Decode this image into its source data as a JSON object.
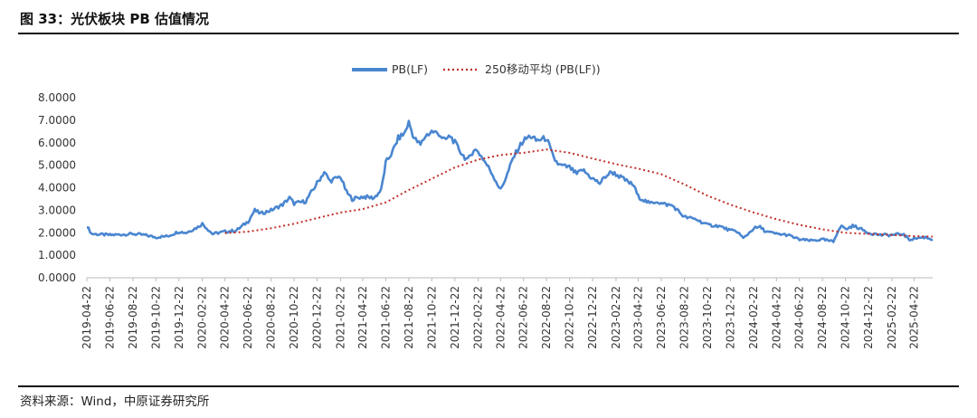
{
  "header": {
    "title": "图 33：光伏板块 PB 估值情况"
  },
  "footer": {
    "source": "资料来源：Wind，中原证券研究所"
  },
  "colors": {
    "pb": "#4A86D0",
    "ma": "#C0302A",
    "axis": "#BBBBBB"
  },
  "chart_data": {
    "type": "line",
    "title": "",
    "xlabel": "",
    "ylabel": "",
    "ylim": [
      0,
      8
    ],
    "y_ticks": [
      "8.0000",
      "7.0000",
      "6.0000",
      "5.0000",
      "4.0000",
      "3.0000",
      "2.0000",
      "1.0000",
      "0.0000"
    ],
    "x_range": [
      "2019-04-22",
      "2025-06-10"
    ],
    "x_ticks": [
      "2019-04-22",
      "2019-06-22",
      "2019-08-22",
      "2019-10-22",
      "2019-12-22",
      "2020-02-22",
      "2020-04-22",
      "2020-06-22",
      "2020-08-22",
      "2020-10-22",
      "2020-12-22",
      "2021-02-22",
      "2021-04-22",
      "2021-06-22",
      "2021-08-22",
      "2021-10-22",
      "2021-12-22",
      "2022-02-22",
      "2022-04-22",
      "2022-06-22",
      "2022-08-22",
      "2022-10-22",
      "2022-12-22",
      "2023-02-22",
      "2023-04-22",
      "2023-06-22",
      "2023-08-22",
      "2023-10-22",
      "2023-12-22",
      "2024-02-22",
      "2024-04-22",
      "2024-06-22",
      "2024-08-22",
      "2024-10-22",
      "2024-12-22",
      "2025-02-22",
      "2025-04-22"
    ],
    "legend_position": "top-center",
    "series": [
      {
        "name": "PB(LF)",
        "style": "solid",
        "points": [
          [
            "2019-04-22",
            2.3
          ],
          [
            "2019-05-05",
            1.95
          ],
          [
            "2019-06-22",
            1.9
          ],
          [
            "2019-07-22",
            1.92
          ],
          [
            "2019-08-22",
            1.95
          ],
          [
            "2019-09-22",
            1.9
          ],
          [
            "2019-10-22",
            1.8
          ],
          [
            "2019-11-22",
            1.85
          ],
          [
            "2019-12-22",
            2.05
          ],
          [
            "2020-01-10",
            2.0
          ],
          [
            "2020-02-10",
            2.25
          ],
          [
            "2020-02-22",
            2.4
          ],
          [
            "2020-03-20",
            1.95
          ],
          [
            "2020-04-22",
            2.05
          ],
          [
            "2020-05-22",
            2.1
          ],
          [
            "2020-06-22",
            2.5
          ],
          [
            "2020-07-10",
            3.0
          ],
          [
            "2020-07-25",
            2.85
          ],
          [
            "2020-08-22",
            3.0
          ],
          [
            "2020-09-22",
            3.25
          ],
          [
            "2020-10-10",
            3.55
          ],
          [
            "2020-10-22",
            3.3
          ],
          [
            "2020-11-22",
            3.4
          ],
          [
            "2020-12-22",
            4.2
          ],
          [
            "2021-01-10",
            4.7
          ],
          [
            "2021-01-25",
            4.3
          ],
          [
            "2021-02-22",
            4.5
          ],
          [
            "2021-03-10",
            3.8
          ],
          [
            "2021-03-25",
            3.5
          ],
          [
            "2021-04-22",
            3.6
          ],
          [
            "2021-05-22",
            3.55
          ],
          [
            "2021-06-10",
            3.9
          ],
          [
            "2021-06-22",
            5.1
          ],
          [
            "2021-07-10",
            5.6
          ],
          [
            "2021-07-25",
            6.2
          ],
          [
            "2021-08-10",
            6.4
          ],
          [
            "2021-08-22",
            6.9
          ],
          [
            "2021-09-05",
            6.2
          ],
          [
            "2021-09-22",
            5.9
          ],
          [
            "2021-10-05",
            6.3
          ],
          [
            "2021-10-22",
            6.5
          ],
          [
            "2021-11-10",
            6.4
          ],
          [
            "2021-11-25",
            6.1
          ],
          [
            "2021-12-10",
            6.3
          ],
          [
            "2021-12-22",
            6.0
          ],
          [
            "2022-01-10",
            5.5
          ],
          [
            "2022-01-25",
            5.2
          ],
          [
            "2022-02-10",
            5.7
          ],
          [
            "2022-02-22",
            5.6
          ],
          [
            "2022-03-10",
            5.2
          ],
          [
            "2022-03-25",
            4.8
          ],
          [
            "2022-04-10",
            4.3
          ],
          [
            "2022-04-22",
            3.9
          ],
          [
            "2022-05-10",
            4.6
          ],
          [
            "2022-05-25",
            5.3
          ],
          [
            "2022-06-10",
            5.8
          ],
          [
            "2022-06-22",
            6.1
          ],
          [
            "2022-07-10",
            6.3
          ],
          [
            "2022-07-25",
            6.1
          ],
          [
            "2022-08-22",
            6.2
          ],
          [
            "2022-09-10",
            5.3
          ],
          [
            "2022-09-25",
            5.0
          ],
          [
            "2022-10-22",
            4.9
          ],
          [
            "2022-11-10",
            4.6
          ],
          [
            "2022-11-25",
            4.8
          ],
          [
            "2022-12-22",
            4.4
          ],
          [
            "2023-01-10",
            4.2
          ],
          [
            "2023-01-25",
            4.5
          ],
          [
            "2023-02-10",
            4.7
          ],
          [
            "2023-02-22",
            4.6
          ],
          [
            "2023-03-22",
            4.3
          ],
          [
            "2023-04-10",
            4.1
          ],
          [
            "2023-04-22",
            3.6
          ],
          [
            "2023-05-22",
            3.3
          ],
          [
            "2023-06-10",
            3.4
          ],
          [
            "2023-06-22",
            3.3
          ],
          [
            "2023-07-22",
            3.2
          ],
          [
            "2023-08-10",
            2.9
          ],
          [
            "2023-08-22",
            2.7
          ],
          [
            "2023-09-22",
            2.6
          ],
          [
            "2023-10-10",
            2.45
          ],
          [
            "2023-10-22",
            2.35
          ],
          [
            "2023-11-22",
            2.3
          ],
          [
            "2023-12-22",
            2.1
          ],
          [
            "2024-01-10",
            2.05
          ],
          [
            "2024-01-25",
            1.75
          ],
          [
            "2024-02-10",
            2.0
          ],
          [
            "2024-02-22",
            2.2
          ],
          [
            "2024-03-10",
            2.25
          ],
          [
            "2024-03-25",
            2.05
          ],
          [
            "2024-04-22",
            1.95
          ],
          [
            "2024-05-22",
            1.9
          ],
          [
            "2024-06-22",
            1.7
          ],
          [
            "2024-07-22",
            1.65
          ],
          [
            "2024-08-22",
            1.7
          ],
          [
            "2024-09-20",
            1.6
          ],
          [
            "2024-10-05",
            2.2
          ],
          [
            "2024-10-15",
            2.3
          ],
          [
            "2024-10-22",
            2.15
          ],
          [
            "2024-11-10",
            2.3
          ],
          [
            "2024-11-22",
            2.25
          ],
          [
            "2024-12-22",
            2.0
          ],
          [
            "2025-01-22",
            1.9
          ],
          [
            "2025-02-22",
            1.9
          ],
          [
            "2025-03-22",
            1.95
          ],
          [
            "2025-04-10",
            1.7
          ],
          [
            "2025-04-22",
            1.75
          ],
          [
            "2025-05-22",
            1.8
          ],
          [
            "2025-06-10",
            1.7
          ]
        ]
      },
      {
        "name": "250移动平均 (PB(LF))",
        "style": "dotted",
        "points": [
          [
            "2020-04-22",
            1.98
          ],
          [
            "2020-06-22",
            2.05
          ],
          [
            "2020-08-22",
            2.2
          ],
          [
            "2020-10-22",
            2.4
          ],
          [
            "2020-12-22",
            2.65
          ],
          [
            "2021-02-22",
            2.9
          ],
          [
            "2021-04-22",
            3.05
          ],
          [
            "2021-06-22",
            3.35
          ],
          [
            "2021-08-22",
            3.9
          ],
          [
            "2021-10-22",
            4.4
          ],
          [
            "2021-12-22",
            4.9
          ],
          [
            "2022-02-22",
            5.25
          ],
          [
            "2022-04-22",
            5.45
          ],
          [
            "2022-06-22",
            5.55
          ],
          [
            "2022-08-22",
            5.7
          ],
          [
            "2022-10-22",
            5.55
          ],
          [
            "2022-12-22",
            5.3
          ],
          [
            "2023-02-22",
            5.05
          ],
          [
            "2023-04-22",
            4.85
          ],
          [
            "2023-06-22",
            4.6
          ],
          [
            "2023-08-22",
            4.15
          ],
          [
            "2023-10-22",
            3.65
          ],
          [
            "2023-12-22",
            3.25
          ],
          [
            "2024-02-22",
            2.9
          ],
          [
            "2024-04-22",
            2.6
          ],
          [
            "2024-06-22",
            2.35
          ],
          [
            "2024-08-22",
            2.15
          ],
          [
            "2024-10-22",
            2.0
          ],
          [
            "2024-12-22",
            1.95
          ],
          [
            "2025-02-22",
            1.9
          ],
          [
            "2025-04-22",
            1.85
          ],
          [
            "2025-06-10",
            1.83
          ]
        ]
      }
    ]
  }
}
